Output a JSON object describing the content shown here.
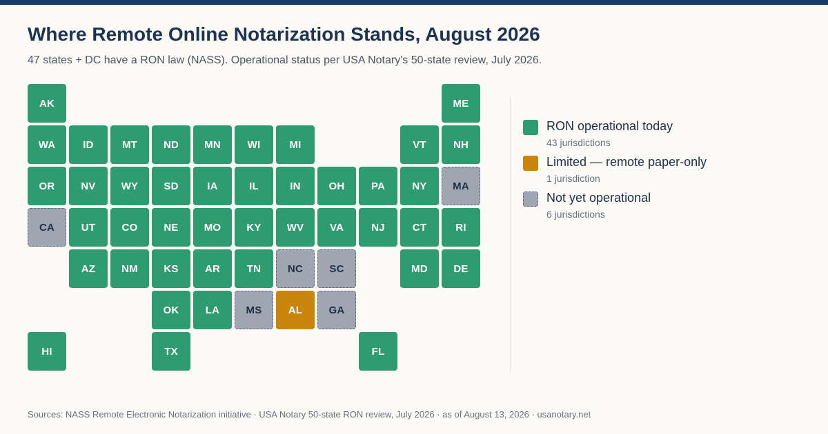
{
  "header": {
    "title": "Where Remote Online Notarization Stands, August 2026",
    "subtitle": "47 states + DC have a RON law (NASS). Operational status per USA Notary's 50-state review, July 2026."
  },
  "colors": {
    "operational": "#2e9c6e",
    "limited": "#c9850e",
    "not_operational": "#a0a6b1",
    "top_bar": "#173a66"
  },
  "legend": [
    {
      "status": "operational",
      "label": "RON operational today",
      "count": "43 jurisdictions"
    },
    {
      "status": "limited",
      "label": "Limited — remote paper-only",
      "count": "1 jurisdiction"
    },
    {
      "status": "not_operational",
      "label": "Not yet operational",
      "count": "6 jurisdictions"
    }
  ],
  "states": [
    {
      "abbr": "AK",
      "row": 0,
      "col": 0,
      "status": "operational"
    },
    {
      "abbr": "ME",
      "row": 0,
      "col": 10,
      "status": "operational"
    },
    {
      "abbr": "WA",
      "row": 1,
      "col": 0,
      "status": "operational"
    },
    {
      "abbr": "ID",
      "row": 1,
      "col": 1,
      "status": "operational"
    },
    {
      "abbr": "MT",
      "row": 1,
      "col": 2,
      "status": "operational"
    },
    {
      "abbr": "ND",
      "row": 1,
      "col": 3,
      "status": "operational"
    },
    {
      "abbr": "MN",
      "row": 1,
      "col": 4,
      "status": "operational"
    },
    {
      "abbr": "WI",
      "row": 1,
      "col": 5,
      "status": "operational"
    },
    {
      "abbr": "MI",
      "row": 1,
      "col": 6,
      "status": "operational"
    },
    {
      "abbr": "VT",
      "row": 1,
      "col": 9,
      "status": "operational"
    },
    {
      "abbr": "NH",
      "row": 1,
      "col": 10,
      "status": "operational"
    },
    {
      "abbr": "OR",
      "row": 2,
      "col": 0,
      "status": "operational"
    },
    {
      "abbr": "NV",
      "row": 2,
      "col": 1,
      "status": "operational"
    },
    {
      "abbr": "WY",
      "row": 2,
      "col": 2,
      "status": "operational"
    },
    {
      "abbr": "SD",
      "row": 2,
      "col": 3,
      "status": "operational"
    },
    {
      "abbr": "IA",
      "row": 2,
      "col": 4,
      "status": "operational"
    },
    {
      "abbr": "IL",
      "row": 2,
      "col": 5,
      "status": "operational"
    },
    {
      "abbr": "IN",
      "row": 2,
      "col": 6,
      "status": "operational"
    },
    {
      "abbr": "OH",
      "row": 2,
      "col": 7,
      "status": "operational"
    },
    {
      "abbr": "PA",
      "row": 2,
      "col": 8,
      "status": "operational"
    },
    {
      "abbr": "NY",
      "row": 2,
      "col": 9,
      "status": "operational"
    },
    {
      "abbr": "MA",
      "row": 2,
      "col": 10,
      "status": "not_operational"
    },
    {
      "abbr": "CA",
      "row": 3,
      "col": 0,
      "status": "not_operational"
    },
    {
      "abbr": "UT",
      "row": 3,
      "col": 1,
      "status": "operational"
    },
    {
      "abbr": "CO",
      "row": 3,
      "col": 2,
      "status": "operational"
    },
    {
      "abbr": "NE",
      "row": 3,
      "col": 3,
      "status": "operational"
    },
    {
      "abbr": "MO",
      "row": 3,
      "col": 4,
      "status": "operational"
    },
    {
      "abbr": "KY",
      "row": 3,
      "col": 5,
      "status": "operational"
    },
    {
      "abbr": "WV",
      "row": 3,
      "col": 6,
      "status": "operational"
    },
    {
      "abbr": "VA",
      "row": 3,
      "col": 7,
      "status": "operational"
    },
    {
      "abbr": "NJ",
      "row": 3,
      "col": 8,
      "status": "operational"
    },
    {
      "abbr": "CT",
      "row": 3,
      "col": 9,
      "status": "operational"
    },
    {
      "abbr": "RI",
      "row": 3,
      "col": 10,
      "status": "operational"
    },
    {
      "abbr": "AZ",
      "row": 4,
      "col": 1,
      "status": "operational"
    },
    {
      "abbr": "NM",
      "row": 4,
      "col": 2,
      "status": "operational"
    },
    {
      "abbr": "KS",
      "row": 4,
      "col": 3,
      "status": "operational"
    },
    {
      "abbr": "AR",
      "row": 4,
      "col": 4,
      "status": "operational"
    },
    {
      "abbr": "TN",
      "row": 4,
      "col": 5,
      "status": "operational"
    },
    {
      "abbr": "NC",
      "row": 4,
      "col": 6,
      "status": "not_operational"
    },
    {
      "abbr": "SC",
      "row": 4,
      "col": 7,
      "status": "not_operational"
    },
    {
      "abbr": "MD",
      "row": 4,
      "col": 9,
      "status": "operational"
    },
    {
      "abbr": "DE",
      "row": 4,
      "col": 10,
      "status": "operational"
    },
    {
      "abbr": "OK",
      "row": 5,
      "col": 3,
      "status": "operational"
    },
    {
      "abbr": "LA",
      "row": 5,
      "col": 4,
      "status": "operational"
    },
    {
      "abbr": "MS",
      "row": 5,
      "col": 5,
      "status": "not_operational"
    },
    {
      "abbr": "AL",
      "row": 5,
      "col": 6,
      "status": "limited"
    },
    {
      "abbr": "GA",
      "row": 5,
      "col": 7,
      "status": "not_operational"
    },
    {
      "abbr": "HI",
      "row": 6,
      "col": 0,
      "status": "operational"
    },
    {
      "abbr": "TX",
      "row": 6,
      "col": 3,
      "status": "operational"
    },
    {
      "abbr": "FL",
      "row": 6,
      "col": 8,
      "status": "operational"
    }
  ],
  "footer": "Sources: NASS Remote Electronic Notarization initiative · USA Notary 50-state RON review, July 2026 · as of August 13, 2026 · usanotary.net"
}
